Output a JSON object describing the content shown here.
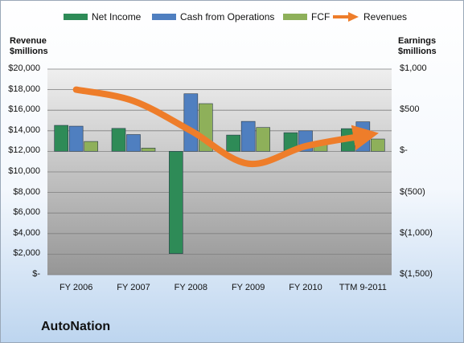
{
  "chart_data": {
    "type": "bar",
    "company": "AutoNation",
    "categories": [
      "FY 2006",
      "FY 2007",
      "FY 2008",
      "FY 2009",
      "FY 2010",
      "TTM 9-2011"
    ],
    "left_axis": {
      "label_line1": "Revenue",
      "label_line2": "$millions",
      "min": 0,
      "max": 20000,
      "ticks": [
        20000,
        18000,
        16000,
        14000,
        12000,
        10000,
        8000,
        6000,
        4000,
        2000,
        0
      ],
      "tick_labels": [
        "$20,000",
        "$18,000",
        "$16,000",
        "$14,000",
        "$12,000",
        "$10,000",
        "$8,000",
        "$6,000",
        "$4,000",
        "$2,000",
        "$-"
      ]
    },
    "right_axis": {
      "label_line1": "Earnings",
      "label_line2": "$millions",
      "min": -1500,
      "max": 1000,
      "ticks": [
        1000,
        500,
        0,
        -500,
        -1000,
        -1500
      ],
      "tick_labels": [
        "$1,000",
        "$500",
        "$-",
        "$(500)",
        "$(1,000)",
        "$(1,500)"
      ]
    },
    "series": [
      {
        "name": "Net Income",
        "axis": "right",
        "kind": "bar",
        "color": "#2e8b57",
        "values": [
          316,
          279,
          -1243,
          198,
          227,
          276
        ]
      },
      {
        "name": "Cash from Operations",
        "axis": "right",
        "kind": "bar",
        "color": "#4f7fc0",
        "values": [
          306,
          204,
          700,
          364,
          250,
          359
        ]
      },
      {
        "name": "FCF",
        "axis": "right",
        "kind": "bar",
        "color": "#8eb05a",
        "values": [
          120,
          40,
          580,
          290,
          100,
          150
        ]
      },
      {
        "name": "Revenues",
        "axis": "left",
        "kind": "line",
        "color": "#ee7d2a",
        "values": [
          18000,
          16900,
          14000,
          10800,
          12500,
          13500
        ]
      }
    ],
    "grid": true,
    "legend_position": "top"
  }
}
